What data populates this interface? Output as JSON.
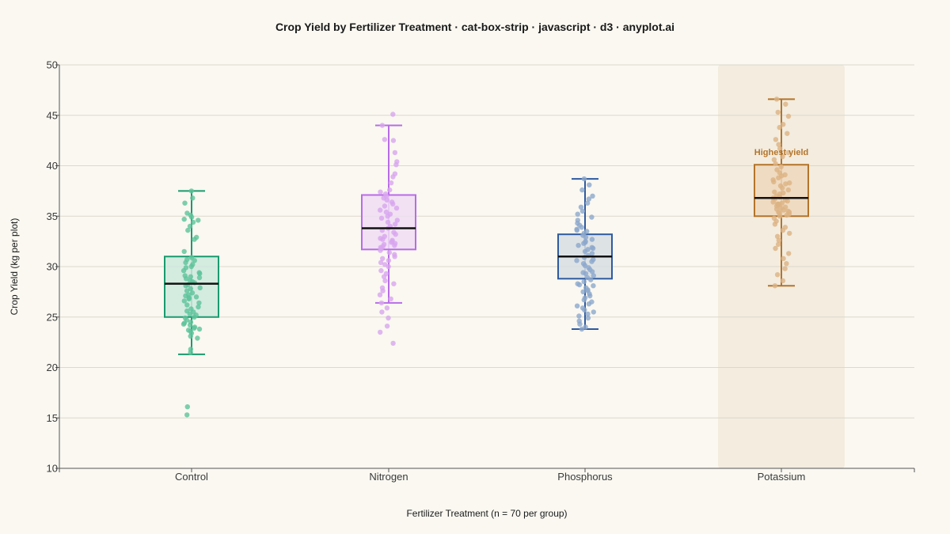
{
  "chart_data": {
    "type": "box-strip",
    "title": "Crop Yield by Fertilizer Treatment · cat-box-strip · javascript · d3 · anyplot.ai",
    "xlabel": "Fertilizer Treatment (n = 70 per group)",
    "ylabel": "Crop Yield (kg per plot)",
    "ylim": [
      10,
      50
    ],
    "yticks": [
      10,
      15,
      20,
      25,
      30,
      35,
      40,
      45,
      50
    ],
    "grid": true,
    "categories": [
      "Control",
      "Nitrogen",
      "Phosphorus",
      "Potassium"
    ],
    "series": [
      {
        "category": "Control",
        "color": "#1A9A6E",
        "fill": "#CDE9DD",
        "point_color": "#5DC39A",
        "stats": {
          "whisker_low": 21.3,
          "q1": 25.0,
          "median": 28.3,
          "q3": 31.0,
          "whisker_high": 37.5
        },
        "points": [
          37.5,
          36.8,
          36.3,
          35.3,
          35.1,
          34.9,
          34.7,
          34.6,
          34.4,
          34.0,
          33.6,
          32.9,
          32.7,
          31.5,
          30.9,
          30.7,
          30.6,
          30.4,
          30.2,
          30.0,
          29.9,
          29.6,
          29.4,
          29.3,
          29.1,
          29.0,
          28.9,
          28.8,
          28.6,
          28.5,
          28.4,
          28.2,
          28.1,
          27.9,
          27.8,
          27.6,
          27.4,
          27.2,
          27.1,
          27.0,
          26.9,
          26.8,
          26.6,
          26.4,
          26.2,
          26.0,
          25.8,
          25.6,
          25.5,
          25.3,
          25.2,
          25.0,
          24.9,
          24.7,
          24.5,
          24.4,
          24.3,
          24.2,
          24.0,
          23.9,
          23.8,
          23.7,
          23.6,
          23.4,
          23.1,
          22.9,
          21.8,
          21.5,
          16.1,
          15.3
        ]
      },
      {
        "category": "Nitrogen",
        "color": "#B86CE8",
        "fill": "#EEDDF2",
        "point_color": "#D8A5EF",
        "stats": {
          "whisker_low": 26.4,
          "q1": 31.7,
          "median": 33.8,
          "q3": 37.1,
          "whisker_high": 44.0
        },
        "points": [
          45.1,
          44.0,
          42.6,
          42.5,
          41.3,
          40.4,
          40.1,
          39.2,
          38.9,
          38.3,
          37.6,
          37.4,
          37.2,
          37.0,
          36.8,
          36.6,
          36.4,
          36.2,
          36.0,
          35.8,
          35.6,
          35.4,
          35.2,
          35.0,
          34.8,
          34.6,
          34.4,
          34.2,
          34.0,
          33.8,
          33.6,
          33.4,
          33.2,
          33.0,
          32.8,
          32.7,
          32.6,
          32.5,
          32.4,
          32.3,
          32.2,
          32.1,
          32.0,
          31.9,
          31.8,
          31.6,
          31.4,
          31.2,
          31.0,
          30.8,
          30.6,
          30.4,
          30.2,
          30.0,
          29.6,
          29.3,
          29.0,
          28.6,
          28.3,
          27.9,
          27.6,
          27.2,
          26.8,
          26.4,
          25.9,
          25.5,
          24.9,
          24.1,
          23.5,
          22.4
        ]
      },
      {
        "category": "Phosphorus",
        "color": "#2F5A9E",
        "fill": "#D7DEE3",
        "point_color": "#8CA8CC",
        "stats": {
          "whisker_low": 23.8,
          "q1": 28.8,
          "median": 31.0,
          "q3": 33.2,
          "whisker_high": 38.7
        },
        "points": [
          38.7,
          38.1,
          37.6,
          37.0,
          36.7,
          36.3,
          35.9,
          35.5,
          35.2,
          34.9,
          34.6,
          34.3,
          34.1,
          33.9,
          33.7,
          33.5,
          33.3,
          33.1,
          32.9,
          32.7,
          32.5,
          32.3,
          32.1,
          31.9,
          31.7,
          31.5,
          31.3,
          31.1,
          30.9,
          30.7,
          30.5,
          30.3,
          30.1,
          29.9,
          29.7,
          29.5,
          29.3,
          29.1,
          28.9,
          28.7,
          28.5,
          28.3,
          28.1,
          27.9,
          27.7,
          27.5,
          27.3,
          27.1,
          26.9,
          26.7,
          26.5,
          26.3,
          26.1,
          25.9,
          25.7,
          25.5,
          25.3,
          25.1,
          24.9,
          24.6,
          24.3,
          24.0,
          23.8,
          30.6,
          31.8,
          32.4,
          33.6,
          29.4,
          28.2,
          27.6
        ]
      },
      {
        "category": "Potassium",
        "color": "#B4742A",
        "fill": "#EDD8BC",
        "point_color": "#DCB383",
        "stats": {
          "whisker_low": 28.1,
          "q1": 35.0,
          "median": 36.8,
          "q3": 40.1,
          "whisker_high": 46.6
        },
        "points": [
          46.6,
          46.1,
          45.3,
          44.9,
          44.1,
          43.8,
          43.2,
          42.6,
          42.1,
          41.7,
          41.3,
          40.9,
          40.6,
          40.2,
          39.9,
          39.6,
          39.3,
          39.0,
          38.8,
          38.6,
          38.4,
          38.2,
          38.0,
          37.8,
          37.6,
          37.4,
          37.2,
          37.0,
          36.9,
          36.8,
          36.7,
          36.6,
          36.5,
          36.4,
          36.3,
          36.2,
          36.1,
          36.0,
          35.9,
          35.8,
          35.7,
          35.6,
          35.5,
          35.4,
          35.3,
          35.2,
          35.1,
          35.0,
          34.8,
          34.5,
          34.2,
          33.9,
          33.6,
          33.3,
          33.0,
          32.6,
          32.2,
          31.8,
          31.3,
          30.8,
          30.3,
          29.8,
          29.2,
          28.6,
          28.1,
          39.1,
          38.3,
          37.3,
          36.2,
          35.4
        ]
      }
    ],
    "highlight": {
      "category": "Potassium",
      "annotation": "Highest yield"
    }
  }
}
